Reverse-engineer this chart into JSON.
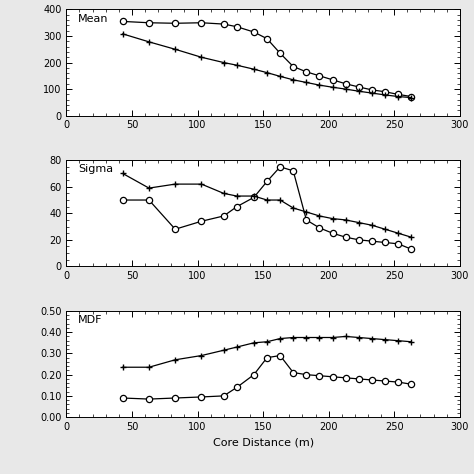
{
  "mean_x_diamond": [
    43,
    63,
    83,
    103,
    120,
    130,
    143,
    153,
    163,
    173,
    183,
    193,
    203,
    213,
    223,
    233,
    243,
    253,
    263
  ],
  "mean_y_diamond": [
    355,
    350,
    348,
    350,
    345,
    335,
    315,
    290,
    235,
    185,
    165,
    150,
    135,
    120,
    108,
    97,
    90,
    80,
    72
  ],
  "mean_x_plus": [
    43,
    63,
    83,
    103,
    120,
    130,
    143,
    153,
    163,
    173,
    183,
    193,
    203,
    213,
    223,
    233,
    243,
    253,
    263
  ],
  "mean_y_plus": [
    308,
    278,
    250,
    220,
    200,
    190,
    175,
    162,
    148,
    135,
    125,
    115,
    107,
    100,
    92,
    85,
    78,
    72,
    68
  ],
  "sigma_x_diamond": [
    43,
    63,
    83,
    103,
    120,
    130,
    143,
    153,
    163,
    173,
    183,
    193,
    203,
    213,
    223,
    233,
    243,
    253,
    263
  ],
  "sigma_y_diamond": [
    50,
    50,
    28,
    34,
    38,
    45,
    52,
    64,
    75,
    72,
    35,
    29,
    25,
    22,
    20,
    19,
    18,
    17,
    13
  ],
  "sigma_x_plus": [
    43,
    63,
    83,
    103,
    120,
    130,
    143,
    153,
    163,
    173,
    183,
    193,
    203,
    213,
    223,
    233,
    243,
    253,
    263
  ],
  "sigma_y_plus": [
    70,
    59,
    62,
    62,
    55,
    53,
    53,
    50,
    50,
    44,
    41,
    38,
    36,
    35,
    33,
    31,
    28,
    25,
    22
  ],
  "mdf_x_diamond": [
    43,
    63,
    83,
    103,
    120,
    130,
    143,
    153,
    163,
    173,
    183,
    193,
    203,
    213,
    223,
    233,
    243,
    253,
    263
  ],
  "mdf_y_diamond": [
    0.09,
    0.085,
    0.09,
    0.095,
    0.1,
    0.14,
    0.2,
    0.28,
    0.29,
    0.21,
    0.2,
    0.195,
    0.19,
    0.185,
    0.18,
    0.175,
    0.17,
    0.165,
    0.155
  ],
  "mdf_x_plus": [
    43,
    63,
    83,
    103,
    120,
    130,
    143,
    153,
    163,
    173,
    183,
    193,
    203,
    213,
    223,
    233,
    243,
    253,
    263
  ],
  "mdf_y_plus": [
    0.235,
    0.235,
    0.27,
    0.29,
    0.315,
    0.33,
    0.35,
    0.355,
    0.37,
    0.375,
    0.375,
    0.375,
    0.375,
    0.38,
    0.375,
    0.37,
    0.365,
    0.36,
    0.355
  ],
  "xlabel": "Core Distance (m)",
  "label_mean": "Mean",
  "label_sigma": "Sigma",
  "label_mdf": "MDF",
  "mean_ylim": [
    0,
    400
  ],
  "sigma_ylim": [
    0,
    80
  ],
  "mdf_ylim": [
    0.0,
    0.5
  ],
  "xlim": [
    0,
    300
  ],
  "mean_yticks": [
    0,
    100,
    200,
    300,
    400
  ],
  "sigma_yticks": [
    0,
    20,
    40,
    60,
    80
  ],
  "mdf_yticks": [
    0.0,
    0.1,
    0.2,
    0.3,
    0.4,
    0.5
  ],
  "xticks": [
    0,
    50,
    100,
    150,
    200,
    250,
    300
  ],
  "bg_color": "#e8e8e8"
}
